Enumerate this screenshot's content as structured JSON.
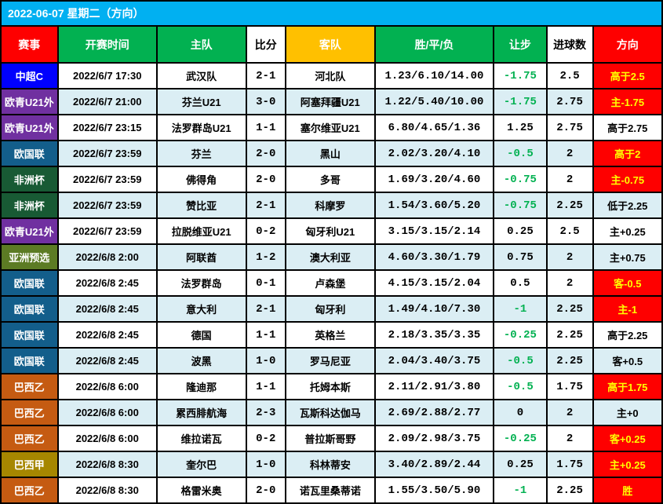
{
  "title": "2022-06-07 星期二（方向）",
  "title_bg": "#01b0f1",
  "title_color": "#ffffff",
  "border_color": "#000000",
  "row_colors": {
    "even": "#ffffff",
    "odd": "#dbeef4"
  },
  "let_green": "#02b151",
  "dir_red_bg": "#fe0000",
  "dir_red_fg": "#ffff01",
  "col_widths_pct": [
    8.5,
    15,
    13.5,
    6,
    13.5,
    18,
    8,
    7,
    10.5
  ],
  "headers": [
    {
      "label": "赛事",
      "bg": "#fe0000"
    },
    {
      "label": "开赛时间",
      "bg": "#02b151"
    },
    {
      "label": "主队",
      "bg": "#02b151"
    },
    {
      "label": "比分",
      "bg": "#ffffff",
      "fg": "#000000"
    },
    {
      "label": "客队",
      "bg": "#ffc000"
    },
    {
      "label": "胜/平/负",
      "bg": "#02b151"
    },
    {
      "label": "让步",
      "bg": "#02b151"
    },
    {
      "label": "进球数",
      "bg": "#ffffff",
      "fg": "#000000"
    },
    {
      "label": "方向",
      "bg": "#fe0000"
    }
  ],
  "rows": [
    {
      "comp": "中超C",
      "comp_bg": "#0000fe",
      "time": "2022/6/7 17:30",
      "home": "武汉队",
      "score": "2-1",
      "away": "河北队",
      "odds": "1.23/6.10/14.00",
      "let": "-1.75",
      "let_c": "g",
      "goals": "2.5",
      "dir": "高于2.5",
      "dir_t": "r"
    },
    {
      "comp": "欧青U21外",
      "comp_bg": "#7030a0",
      "time": "2022/6/7 21:00",
      "home": "芬兰U21",
      "score": "3-0",
      "away": "阿塞拜疆U21",
      "odds": "1.22/5.40/10.00",
      "let": "-1.75",
      "let_c": "g",
      "goals": "2.75",
      "dir": "主-1.75",
      "dir_t": "r"
    },
    {
      "comp": "欧青U21外",
      "comp_bg": "#7030a0",
      "time": "2022/6/7 23:15",
      "home": "法罗群岛U21",
      "score": "1-1",
      "away": "塞尔维亚U21",
      "odds": "6.80/4.65/1.36",
      "let": "1.25",
      "let_c": "b",
      "goals": "2.75",
      "dir": "高于2.75",
      "dir_t": "w"
    },
    {
      "comp": "欧国联",
      "comp_bg": "#135e8b",
      "time": "2022/6/7 23:59",
      "home": "芬兰",
      "score": "2-0",
      "away": "黑山",
      "odds": "2.02/3.20/4.10",
      "let": "-0.5",
      "let_c": "g",
      "goals": "2",
      "dir": "高于2",
      "dir_t": "r"
    },
    {
      "comp": "非洲杯",
      "comp_bg": "#185a34",
      "time": "2022/6/7 23:59",
      "home": "佛得角",
      "score": "2-0",
      "away": "多哥",
      "odds": "1.69/3.20/4.60",
      "let": "-0.75",
      "let_c": "g",
      "goals": "2",
      "dir": "主-0.75",
      "dir_t": "r"
    },
    {
      "comp": "非洲杯",
      "comp_bg": "#185a34",
      "time": "2022/6/7 23:59",
      "home": "赞比亚",
      "score": "2-1",
      "away": "科摩罗",
      "odds": "1.54/3.60/5.20",
      "let": "-0.75",
      "let_c": "g",
      "goals": "2.25",
      "dir": "低于2.25",
      "dir_t": "w"
    },
    {
      "comp": "欧青U21外",
      "comp_bg": "#7030a0",
      "time": "2022/6/7 23:59",
      "home": "拉脱维亚U21",
      "score": "0-2",
      "away": "匈牙利U21",
      "odds": "3.15/3.15/2.14",
      "let": "0.25",
      "let_c": "b",
      "goals": "2.5",
      "dir": "主+0.25",
      "dir_t": "w"
    },
    {
      "comp": "亚洲预选",
      "comp_bg": "#5c7b24",
      "time": "2022/6/8 2:00",
      "home": "阿联酋",
      "score": "1-2",
      "away": "澳大利亚",
      "odds": "4.60/3.30/1.79",
      "let": "0.75",
      "let_c": "b",
      "goals": "2",
      "dir": "主+0.75",
      "dir_t": "w"
    },
    {
      "comp": "欧国联",
      "comp_bg": "#135e8b",
      "time": "2022/6/8 2:45",
      "home": "法罗群岛",
      "score": "0-1",
      "away": "卢森堡",
      "odds": "4.15/3.15/2.04",
      "let": "0.5",
      "let_c": "b",
      "goals": "2",
      "dir": "客-0.5",
      "dir_t": "r"
    },
    {
      "comp": "欧国联",
      "comp_bg": "#135e8b",
      "time": "2022/6/8 2:45",
      "home": "意大利",
      "score": "2-1",
      "away": "匈牙利",
      "odds": "1.49/4.10/7.30",
      "let": "-1",
      "let_c": "g",
      "goals": "2.25",
      "dir": "主-1",
      "dir_t": "r"
    },
    {
      "comp": "欧国联",
      "comp_bg": "#135e8b",
      "time": "2022/6/8 2:45",
      "home": "德国",
      "score": "1-1",
      "away": "英格兰",
      "odds": "2.18/3.35/3.35",
      "let": "-0.25",
      "let_c": "g",
      "goals": "2.25",
      "dir": "高于2.25",
      "dir_t": "w"
    },
    {
      "comp": "欧国联",
      "comp_bg": "#135e8b",
      "time": "2022/6/8 2:45",
      "home": "波黑",
      "score": "1-0",
      "away": "罗马尼亚",
      "odds": "2.04/3.40/3.75",
      "let": "-0.5",
      "let_c": "g",
      "goals": "2.25",
      "dir": "客+0.5",
      "dir_t": "w"
    },
    {
      "comp": "巴西乙",
      "comp_bg": "#c55b12",
      "time": "2022/6/8 6:00",
      "home": "隆迪那",
      "score": "1-1",
      "away": "托姆本斯",
      "odds": "2.11/2.91/3.80",
      "let": "-0.5",
      "let_c": "g",
      "goals": "1.75",
      "dir": "高于1.75",
      "dir_t": "r"
    },
    {
      "comp": "巴西乙",
      "comp_bg": "#c55b12",
      "time": "2022/6/8 6:00",
      "home": "累西腓航海",
      "score": "2-3",
      "away": "瓦斯科达伽马",
      "odds": "2.69/2.88/2.77",
      "let": "0",
      "let_c": "b",
      "goals": "2",
      "dir": "主+0",
      "dir_t": "w"
    },
    {
      "comp": "巴西乙",
      "comp_bg": "#c55b12",
      "time": "2022/6/8 6:00",
      "home": "维拉诺瓦",
      "score": "0-2",
      "away": "普拉斯哥野",
      "odds": "2.09/2.98/3.75",
      "let": "-0.25",
      "let_c": "g",
      "goals": "2",
      "dir": "客+0.25",
      "dir_t": "r"
    },
    {
      "comp": "巴西甲",
      "comp_bg": "#a68700",
      "time": "2022/6/8 8:30",
      "home": "奎尔巴",
      "score": "1-0",
      "away": "科林蒂安",
      "odds": "3.40/2.89/2.44",
      "let": "0.25",
      "let_c": "b",
      "goals": "1.75",
      "dir": "主+0.25",
      "dir_t": "r"
    },
    {
      "comp": "巴西乙",
      "comp_bg": "#c55b12",
      "time": "2022/6/8 8:30",
      "home": "格雷米奥",
      "score": "2-0",
      "away": "诺瓦里桑蒂诺",
      "odds": "1.55/3.50/5.90",
      "let": "-1",
      "let_c": "g",
      "goals": "2.25",
      "dir": "胜",
      "dir_t": "r"
    }
  ]
}
